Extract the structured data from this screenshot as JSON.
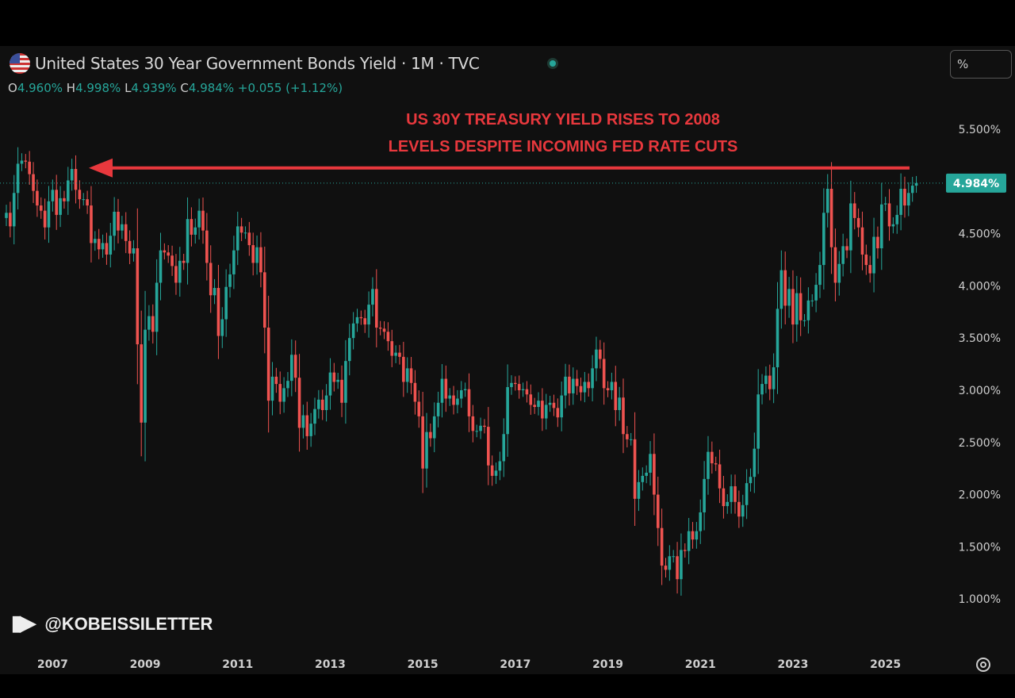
{
  "header": {
    "title": "United States 30 Year Government Bonds Yield · 1M · TVC",
    "ohlc": {
      "o_label": "O",
      "o": "4.960%",
      "h_label": "H",
      "h": "4.998%",
      "l_label": "L",
      "l": "4.939%",
      "c_label": "C",
      "c": "4.984%",
      "change": "+0.055 (+1.12%)"
    },
    "scale_button": "%",
    "flag_icon": "us-flag-icon",
    "status_icon": "market-status-dot"
  },
  "annotation": {
    "line1": "US 30Y TREASURY YIELD RISES TO 2008",
    "line2": "LEVELS DESPITE INCOMING FED RATE CUTS",
    "color": "#e8383d"
  },
  "watermark": {
    "logo": "TV",
    "handle": "@KOBEISSILETTER"
  },
  "colors": {
    "up": "#26a69a",
    "down": "#ef5350",
    "background": "#101010",
    "price_tag": "#26a69a"
  },
  "chart_data": {
    "type": "candlestick",
    "interval": "1M",
    "start": "2006-01",
    "ylim": [
      0.8,
      5.9
    ],
    "y_ticks": [
      "5.500%",
      "4.500%",
      "4.000%",
      "3.500%",
      "3.000%",
      "2.500%",
      "2.000%",
      "1.500%",
      "1.000%"
    ],
    "y_tick_values": [
      5.5,
      4.5,
      4.0,
      3.5,
      3.0,
      2.5,
      2.0,
      1.5,
      1.0
    ],
    "x_ticks": [
      "2007",
      "2009",
      "2011",
      "2013",
      "2015",
      "2017",
      "2019",
      "2021",
      "2023",
      "2025"
    ],
    "last_price_label": "4.984%",
    "last_price": 4.984,
    "annotation_level": 5.13,
    "grid": false,
    "closes": [
      4.7,
      4.57,
      4.89,
      5.17,
      5.2,
      5.19,
      5.07,
      4.91,
      4.77,
      4.72,
      4.56,
      4.81,
      4.92,
      4.68,
      4.84,
      4.81,
      5.01,
      5.12,
      4.92,
      4.83,
      4.83,
      4.77,
      4.41,
      4.45,
      4.35,
      4.41,
      4.3,
      4.48,
      4.71,
      4.53,
      4.59,
      4.43,
      4.31,
      4.36,
      3.44,
      2.69,
      3.58,
      3.71,
      3.56,
      4.03,
      4.34,
      4.32,
      4.29,
      4.19,
      4.03,
      4.24,
      4.22,
      4.64,
      4.49,
      4.56,
      4.72,
      4.53,
      4.22,
      3.91,
      3.98,
      3.52,
      3.68,
      3.99,
      4.11,
      4.34,
      4.57,
      4.51,
      4.51,
      4.39,
      4.22,
      4.37,
      4.13,
      3.6,
      2.9,
      3.13,
      3.06,
      2.89,
      3.02,
      3.09,
      3.34,
      3.12,
      2.64,
      2.76,
      2.56,
      2.68,
      2.82,
      2.91,
      2.81,
      2.95,
      3.17,
      3.08,
      3.1,
      2.88,
      3.28,
      3.5,
      3.64,
      3.7,
      3.69,
      3.63,
      3.82,
      3.97,
      3.6,
      3.59,
      3.56,
      3.47,
      3.33,
      3.36,
      3.32,
      3.08,
      3.21,
      3.07,
      2.89,
      2.75,
      2.25,
      2.6,
      2.54,
      2.75,
      2.88,
      3.11,
      2.92,
      2.95,
      2.86,
      2.92,
      3.0,
      3.01,
      2.75,
      2.61,
      2.61,
      2.66,
      2.65,
      2.28,
      2.18,
      2.23,
      2.32,
      2.58,
      3.03,
      3.07,
      3.06,
      3.0,
      3.01,
      2.96,
      2.86,
      2.84,
      2.9,
      2.73,
      2.86,
      2.88,
      2.83,
      2.74,
      2.95,
      3.13,
      2.97,
      3.11,
      3.04,
      2.98,
      3.08,
      3.02,
      3.21,
      3.39,
      3.3,
      3.02,
      3.0,
      3.08,
      2.81,
      2.93,
      2.58,
      2.53,
      2.53,
      1.96,
      2.12,
      2.18,
      2.21,
      2.39,
      2.0,
      1.68,
      1.32,
      1.28,
      1.41,
      1.41,
      1.19,
      1.47,
      1.46,
      1.65,
      1.57,
      1.65,
      1.83,
      2.15,
      2.41,
      2.3,
      2.29,
      2.06,
      1.89,
      1.93,
      2.08,
      1.93,
      1.79,
      1.9,
      2.11,
      2.17,
      2.44,
      2.96,
      3.06,
      3.14,
      3.01,
      3.22,
      3.78,
      4.15,
      3.81,
      3.97,
      3.63,
      3.93,
      3.67,
      3.67,
      3.86,
      3.86,
      4.01,
      4.2,
      4.7,
      4.93,
      4.37,
      4.03,
      4.21,
      4.38,
      4.34,
      4.79,
      4.65,
      4.56,
      4.3,
      4.2,
      4.12,
      4.47,
      4.36,
      4.78,
      4.79,
      4.57,
      4.59,
      4.68,
      4.93,
      4.77,
      4.89,
      4.96,
      4.984
    ]
  },
  "footer": {
    "settings_icon": "gear-icon"
  }
}
